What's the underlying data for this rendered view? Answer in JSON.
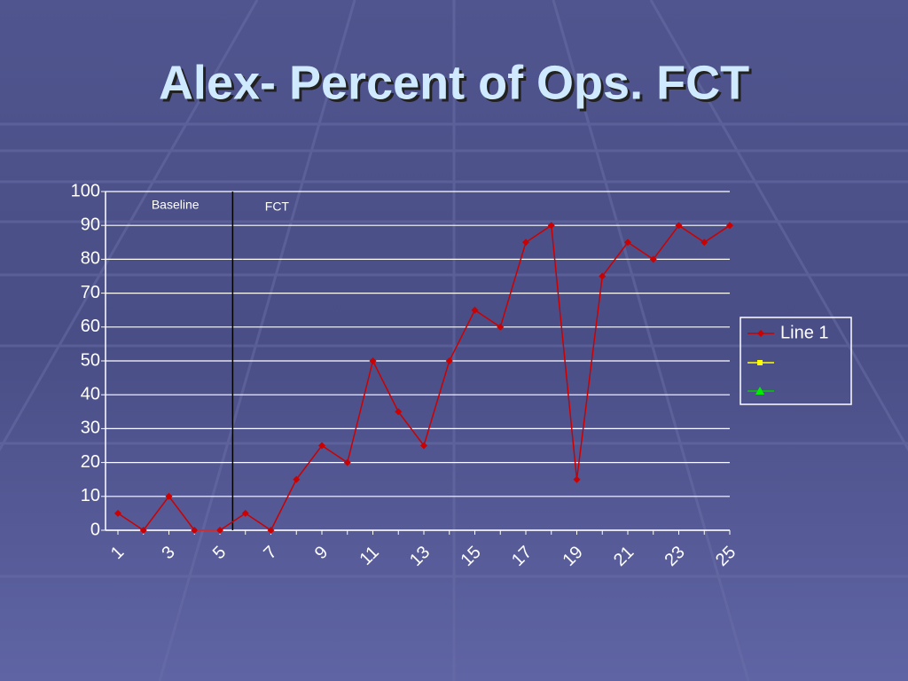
{
  "chart_data": {
    "type": "line",
    "title": "Alex- Percent of Ops. FCT",
    "categories": [
      "1",
      null,
      "3",
      null,
      "5",
      null,
      "7",
      null,
      "9",
      null,
      "11",
      null,
      "13",
      null,
      "15",
      null,
      "17",
      null,
      "19",
      null,
      "21",
      null,
      "23",
      null,
      "25"
    ],
    "series": [
      {
        "name": "Line 1",
        "color": "#cc0000",
        "values": [
          5,
          0,
          10,
          0,
          0,
          5,
          0,
          15,
          25,
          20,
          50,
          35,
          25,
          50,
          65,
          60,
          85,
          90,
          15,
          75,
          85,
          80,
          90,
          85,
          90
        ]
      }
    ],
    "ylim": [
      0,
      100
    ],
    "yticks": [
      0,
      10,
      20,
      30,
      40,
      50,
      60,
      70,
      80,
      90,
      100
    ],
    "grid": true,
    "annotations": [
      "Baseline",
      "FCT"
    ],
    "phase_line": {
      "x": 5.5
    },
    "legend": "right"
  }
}
